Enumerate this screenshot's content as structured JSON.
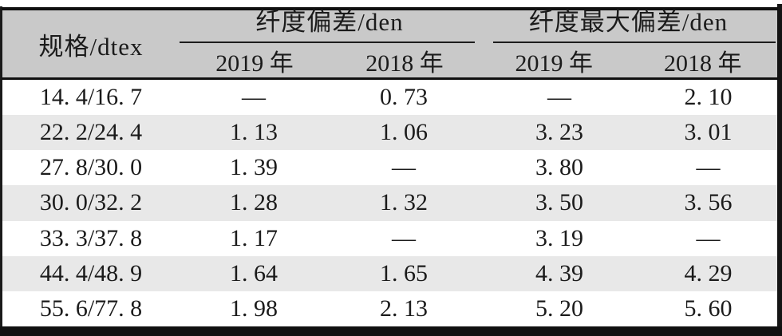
{
  "table": {
    "spec_header": "规格/dtex",
    "groups": [
      {
        "title": "纤度偏差/den",
        "subheaders": [
          "2019 年",
          "2018 年"
        ]
      },
      {
        "title": "纤度最大偏差/den",
        "subheaders": [
          "2019 年",
          "2018 年"
        ]
      }
    ],
    "rows": [
      {
        "spec": "14. 4/16. 7",
        "values": [
          "—",
          "0. 73",
          "—",
          "2. 10"
        ]
      },
      {
        "spec": "22. 2/24. 4",
        "values": [
          "1. 13",
          "1. 06",
          "3. 23",
          "3. 01"
        ]
      },
      {
        "spec": "27. 8/30. 0",
        "values": [
          "1. 39",
          "—",
          "3. 80",
          "—"
        ]
      },
      {
        "spec": "30. 0/32. 2",
        "values": [
          "1. 28",
          "1. 32",
          "3. 50",
          "3. 56"
        ]
      },
      {
        "spec": "33. 3/37. 8",
        "values": [
          "1. 17",
          "—",
          "3. 19",
          "—"
        ]
      },
      {
        "spec": "44. 4/48. 9",
        "values": [
          "1. 64",
          "1. 65",
          "4. 39",
          "4. 29"
        ]
      },
      {
        "spec": "55. 6/77. 8",
        "values": [
          "1. 98",
          "2. 13",
          "5. 20",
          "5. 60"
        ]
      }
    ],
    "colors": {
      "header_bg": "#c9c9c9",
      "alt_row_bg": "#e8e8e8",
      "text": "#1b1b1b",
      "rule": "#101010"
    }
  }
}
